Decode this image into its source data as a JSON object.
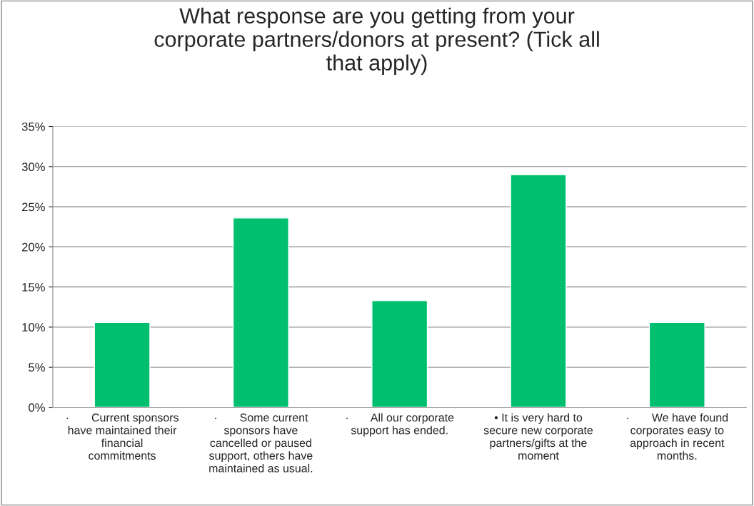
{
  "chart_data": {
    "type": "bar",
    "title": "What response are you getting from your\ncorporate partners/donors at present? (Tick all\nthat apply)",
    "categories": [
      "·       Current sponsors\nhave maintained their\nfinancial\ncommitments",
      "·       Some current\nsponsors have\ncancelled or paused\nsupport, others have\nmaintained as usual.",
      "·       All our corporate\nsupport has ended.",
      "• It is very hard to\nsecure new corporate\npartners/gifts at the\nmoment",
      "·       We have found\ncorporates easy to\napproach in recent\nmonths."
    ],
    "values": [
      10.6,
      23.6,
      13.3,
      29.0,
      10.6
    ],
    "color": "#00c070",
    "ylim": [
      0,
      35
    ],
    "yticks": [
      {
        "value": 0,
        "label": "0%"
      },
      {
        "value": 5,
        "label": "5%"
      },
      {
        "value": 10,
        "label": "10%"
      },
      {
        "value": 15,
        "label": "15%"
      },
      {
        "value": 20,
        "label": "20%"
      },
      {
        "value": 25,
        "label": "25%"
      },
      {
        "value": 30,
        "label": "30%"
      },
      {
        "value": 35,
        "label": "35%"
      }
    ],
    "grid": "y"
  }
}
